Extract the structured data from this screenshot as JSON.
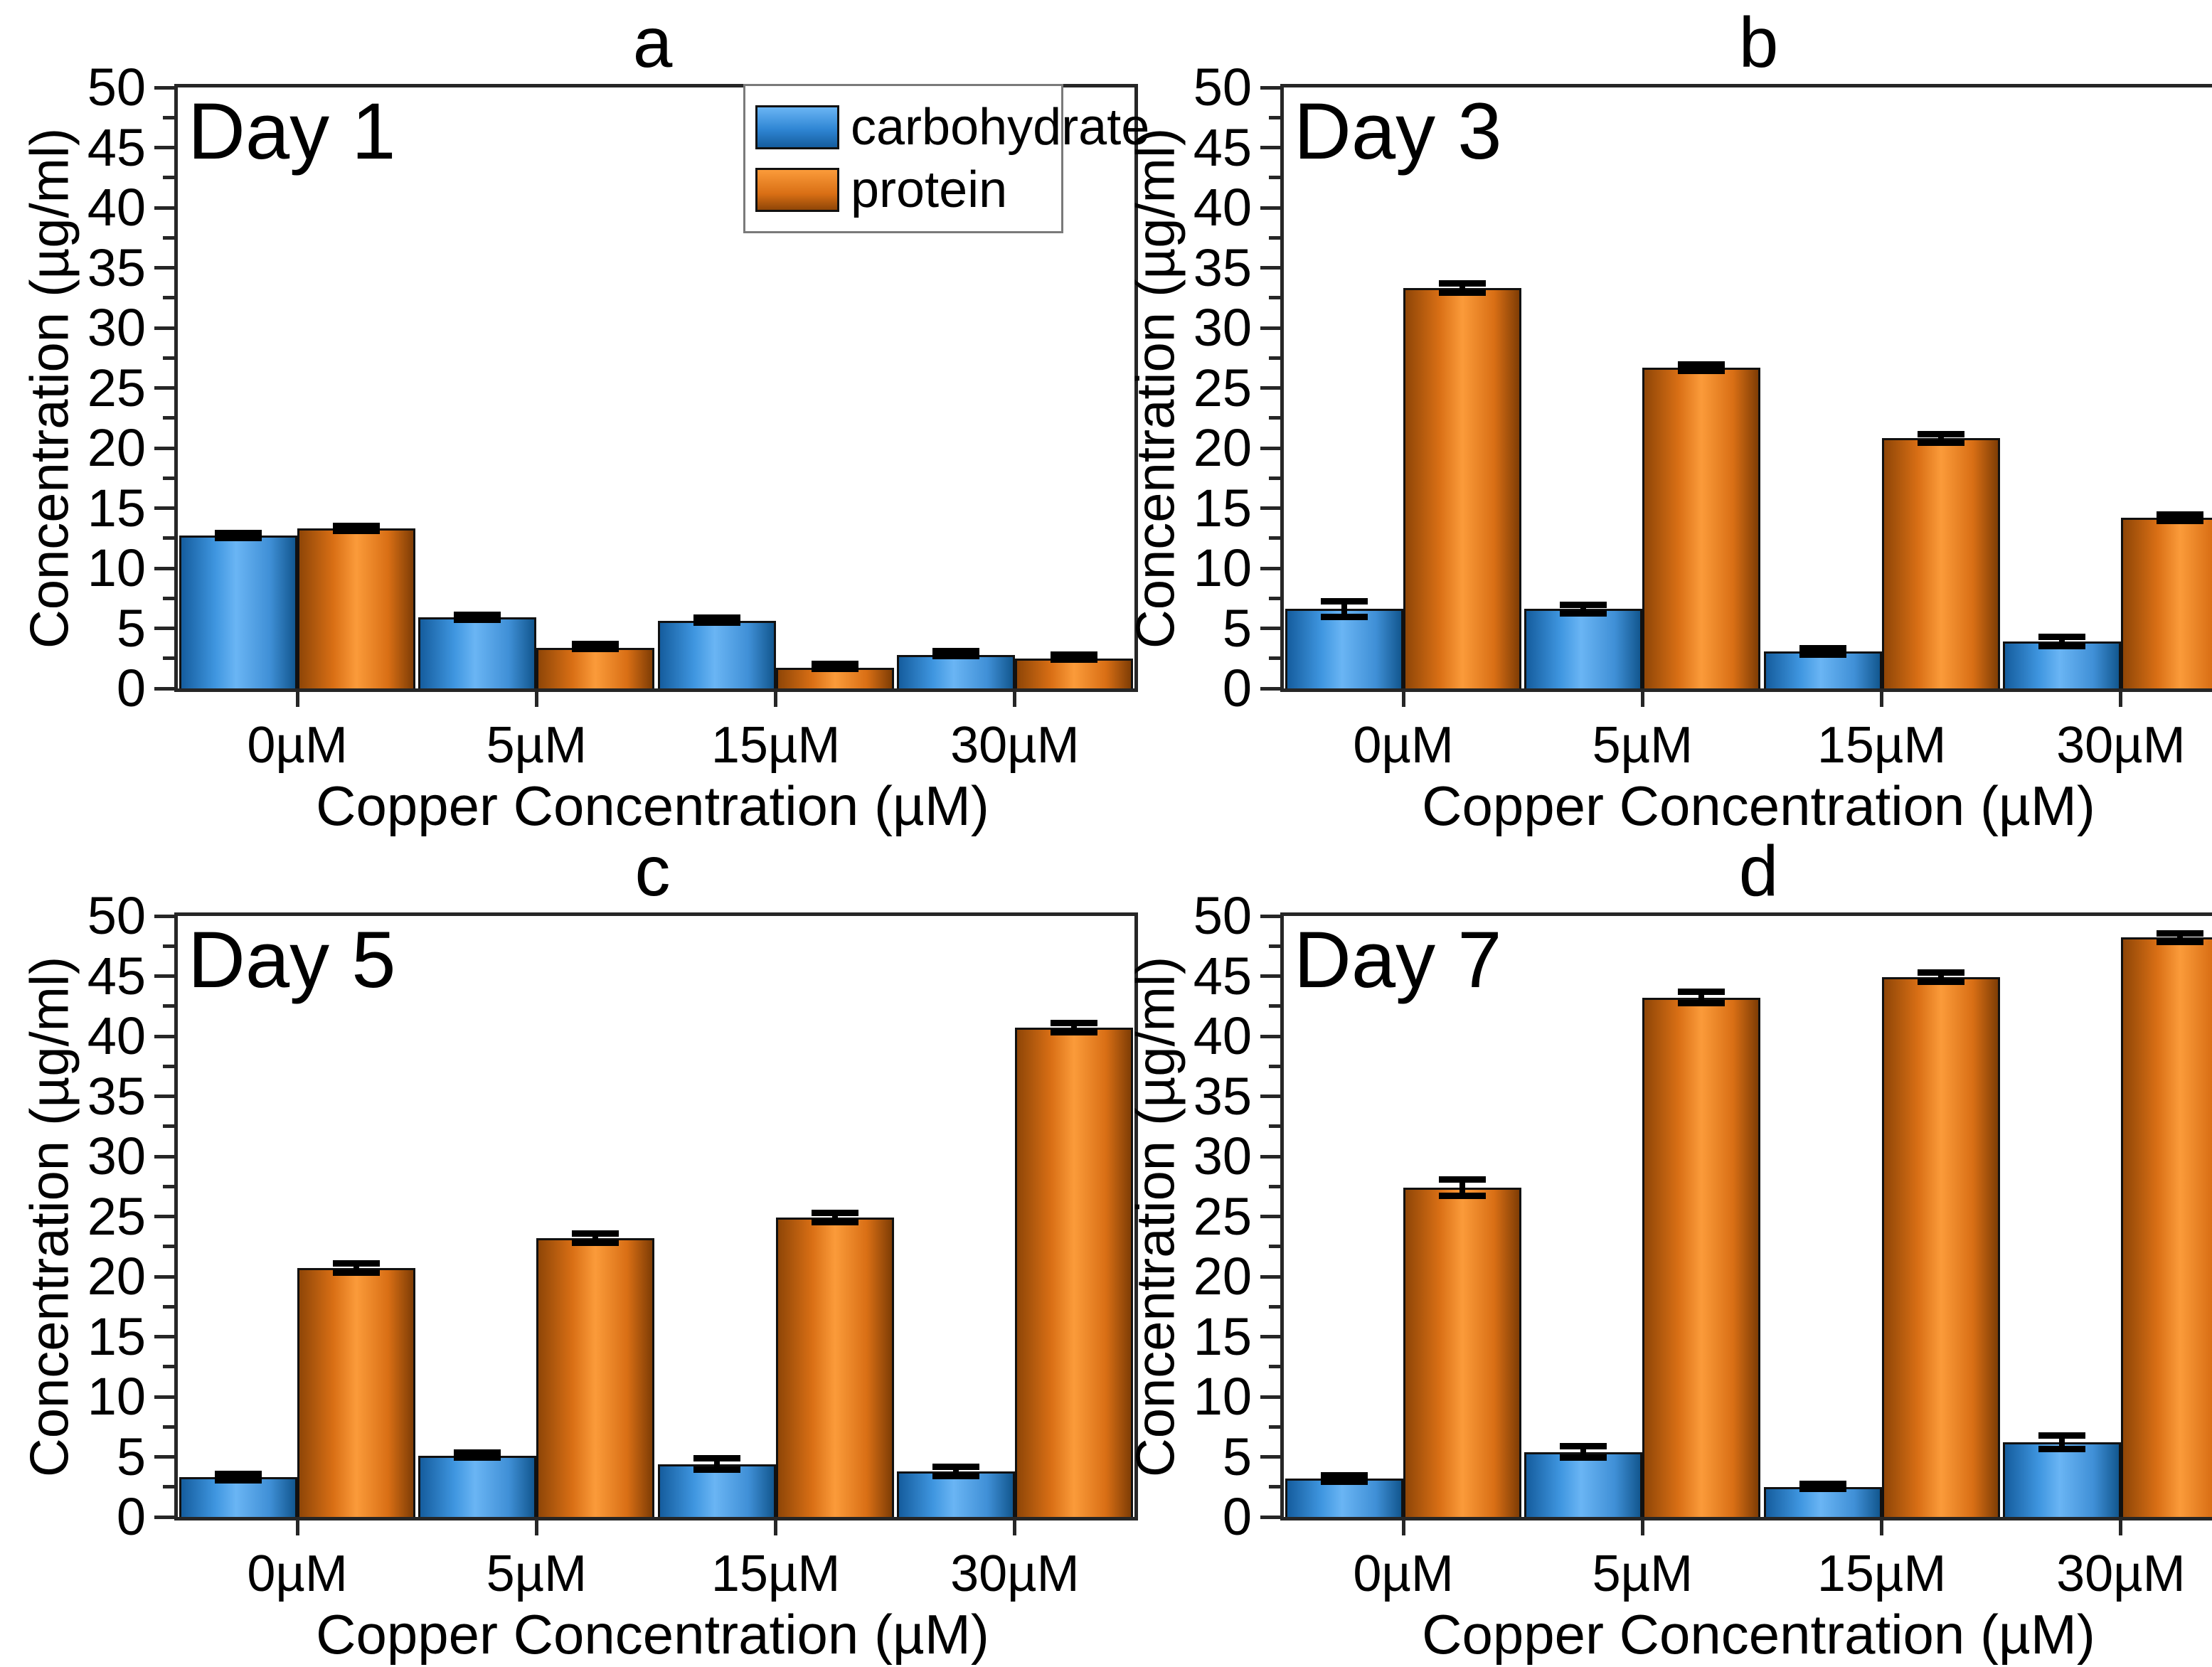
{
  "figure": {
    "background": "#ffffff",
    "ylabel": "Concentration (µg/ml)",
    "xlabel": "Copper Concentration (µM)",
    "categories": [
      "0µM",
      "5µM",
      "15µM",
      "30µM"
    ],
    "legend": [
      {
        "name": "carbohydrate",
        "color_light": "#6ab5f4",
        "color_dark": "#155d9e"
      },
      {
        "name": "protein",
        "color_light": "#fb9b3a",
        "color_dark": "#8f4607"
      }
    ],
    "axis_color": "#262626",
    "bar_edge_color": "#111111"
  },
  "chart_data": [
    {
      "type": "bar",
      "panel_letter": "a",
      "day_label": "Day 1",
      "show_legend": true,
      "ylim": [
        0,
        50
      ],
      "ytick_step": 5,
      "yminor_step": 2.5,
      "grid": false,
      "categories": [
        "0µM",
        "5µM",
        "15µM",
        "30µM"
      ],
      "series": [
        {
          "name": "carbohydrate",
          "values": [
            12.7,
            5.9,
            5.6,
            2.8
          ],
          "errors": [
            0.2,
            0.2,
            0.15,
            0.15
          ]
        },
        {
          "name": "protein",
          "values": [
            13.3,
            3.4,
            1.7,
            2.5
          ],
          "errors": [
            0.2,
            0.15,
            0.1,
            0.15
          ]
        }
      ]
    },
    {
      "type": "bar",
      "panel_letter": "b",
      "day_label": "Day 3",
      "show_legend": false,
      "ylim": [
        0,
        50
      ],
      "ytick_step": 5,
      "yminor_step": 2.5,
      "grid": false,
      "categories": [
        "0µM",
        "5µM",
        "15µM",
        "30µM"
      ],
      "series": [
        {
          "name": "carbohydrate",
          "values": [
            6.6,
            6.6,
            3.1,
            3.9
          ],
          "errors": [
            0.7,
            0.4,
            0.3,
            0.4
          ]
        },
        {
          "name": "protein",
          "values": [
            33.3,
            26.7,
            20.8,
            14.2
          ],
          "errors": [
            0.4,
            0.3,
            0.4,
            0.3
          ]
        }
      ]
    },
    {
      "type": "bar",
      "panel_letter": "c",
      "day_label": "Day 5",
      "show_legend": false,
      "ylim": [
        0,
        50
      ],
      "ytick_step": 5,
      "yminor_step": 2.5,
      "grid": false,
      "categories": [
        "0µM",
        "5µM",
        "15µM",
        "30µM"
      ],
      "series": [
        {
          "name": "carbohydrate",
          "values": [
            3.3,
            5.1,
            4.4,
            3.8
          ],
          "errors": [
            0.3,
            0.2,
            0.5,
            0.4
          ]
        },
        {
          "name": "protein",
          "values": [
            20.7,
            23.2,
            24.9,
            40.7
          ],
          "errors": [
            0.4,
            0.4,
            0.4,
            0.4
          ]
        }
      ]
    },
    {
      "type": "bar",
      "panel_letter": "d",
      "day_label": "Day 7",
      "show_legend": false,
      "ylim": [
        0,
        50
      ],
      "ytick_step": 5,
      "yminor_step": 2.5,
      "grid": false,
      "categories": [
        "0µM",
        "5µM",
        "15µM",
        "30µM"
      ],
      "series": [
        {
          "name": "carbohydrate",
          "values": [
            3.2,
            5.4,
            2.5,
            6.2
          ],
          "errors": [
            0.3,
            0.5,
            0.2,
            0.6
          ]
        },
        {
          "name": "protein",
          "values": [
            27.4,
            43.2,
            44.9,
            48.2
          ],
          "errors": [
            0.7,
            0.5,
            0.4,
            0.4
          ]
        }
      ]
    }
  ]
}
